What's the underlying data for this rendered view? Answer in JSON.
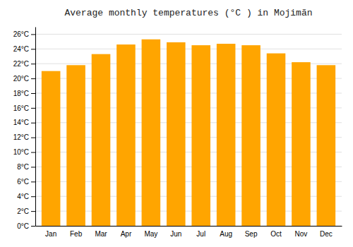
{
  "chart_data": {
    "type": "bar",
    "title": "Average monthly temperatures (°C ) in Mojimãn",
    "categories": [
      "Jan",
      "Feb",
      "Mar",
      "Apr",
      "May",
      "Jun",
      "Jul",
      "Aug",
      "Sep",
      "Oct",
      "Nov",
      "Dec"
    ],
    "values": [
      21.0,
      21.8,
      23.3,
      24.6,
      25.3,
      24.9,
      24.5,
      24.7,
      24.5,
      23.4,
      22.2,
      21.8
    ],
    "color": "#FFA500",
    "ylim": [
      0,
      27
    ],
    "yticks": [
      {
        "value": 0,
        "label": "0°C"
      },
      {
        "value": 2,
        "label": "2°C"
      },
      {
        "value": 4,
        "label": "4°C"
      },
      {
        "value": 6,
        "label": "6°C"
      },
      {
        "value": 8,
        "label": "8°C"
      },
      {
        "value": 10,
        "label": "10°C"
      },
      {
        "value": 12,
        "label": "12°C"
      },
      {
        "value": 14,
        "label": "14°C"
      },
      {
        "value": 16,
        "label": "16°C"
      },
      {
        "value": 18,
        "label": "18°C"
      },
      {
        "value": 20,
        "label": "20°C"
      },
      {
        "value": 22,
        "label": "22°C"
      },
      {
        "value": 24,
        "label": "24°C"
      },
      {
        "value": 26,
        "label": "26°C"
      }
    ],
    "grid": true
  }
}
